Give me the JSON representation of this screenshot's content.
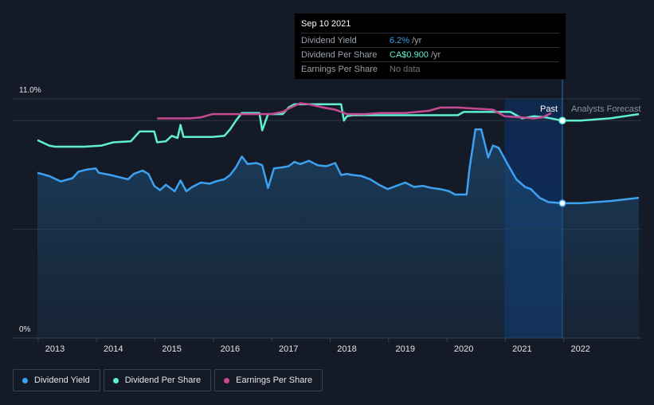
{
  "tooltip": {
    "date": "Sep 10 2021",
    "rows": [
      {
        "name": "Dividend Yield",
        "value": "6.2%",
        "unit": "/yr",
        "color": "#3ba1f0"
      },
      {
        "name": "Dividend Per Share",
        "value": "CA$0.900",
        "unit": "/yr",
        "color": "#5ef0d0"
      },
      {
        "name": "Earnings Per Share",
        "value": "No data",
        "unit": "",
        "color": "#6e7680"
      }
    ]
  },
  "legend": [
    {
      "label": "Dividend Yield",
      "color": "#3ba1f0"
    },
    {
      "label": "Dividend Per Share",
      "color": "#5ef0d0"
    },
    {
      "label": "Earnings Per Share",
      "color": "#c74b93"
    }
  ],
  "chart_data": {
    "type": "line",
    "y_top_label": "11.0%",
    "y_bottom_label": "0%",
    "ylim": [
      0,
      11
    ],
    "xlim": [
      2012.7,
      2023.0
    ],
    "x_ticks": [
      {
        "value": 2013,
        "label": "2013"
      },
      {
        "value": 2014,
        "label": "2014"
      },
      {
        "value": 2015,
        "label": "2015"
      },
      {
        "value": 2016,
        "label": "2016"
      },
      {
        "value": 2017,
        "label": "2017"
      },
      {
        "value": 2018,
        "label": "2018"
      },
      {
        "value": 2019,
        "label": "2019"
      },
      {
        "value": 2020,
        "label": "2020"
      },
      {
        "value": 2021,
        "label": "2021"
      },
      {
        "value": 2022,
        "label": "2022"
      }
    ],
    "past_label": "Past",
    "forecast_label": "Analysts Forecast",
    "forecast_start": 2021.69,
    "highlight_start": 2020.7,
    "series": [
      {
        "name": "Dividend Yield",
        "color": "#3ba1f0",
        "area": true,
        "points": [
          [
            2012.7,
            7.6
          ],
          [
            2012.9,
            7.45
          ],
          [
            2013.1,
            7.2
          ],
          [
            2013.3,
            7.35
          ],
          [
            2013.4,
            7.65
          ],
          [
            2013.55,
            7.75
          ],
          [
            2013.7,
            7.8
          ],
          [
            2013.75,
            7.6
          ],
          [
            2013.95,
            7.5
          ],
          [
            2014.1,
            7.4
          ],
          [
            2014.25,
            7.3
          ],
          [
            2014.35,
            7.55
          ],
          [
            2014.5,
            7.7
          ],
          [
            2014.6,
            7.55
          ],
          [
            2014.7,
            7.0
          ],
          [
            2014.8,
            6.8
          ],
          [
            2014.9,
            7.05
          ],
          [
            2015.05,
            6.75
          ],
          [
            2015.15,
            7.25
          ],
          [
            2015.25,
            6.75
          ],
          [
            2015.35,
            6.95
          ],
          [
            2015.5,
            7.15
          ],
          [
            2015.65,
            7.1
          ],
          [
            2015.75,
            7.2
          ],
          [
            2015.9,
            7.3
          ],
          [
            2016.0,
            7.5
          ],
          [
            2016.1,
            7.85
          ],
          [
            2016.2,
            8.35
          ],
          [
            2016.3,
            8.0
          ],
          [
            2016.45,
            8.05
          ],
          [
            2016.55,
            7.95
          ],
          [
            2016.65,
            6.9
          ],
          [
            2016.75,
            7.8
          ],
          [
            2016.9,
            7.85
          ],
          [
            2017.0,
            7.9
          ],
          [
            2017.1,
            8.1
          ],
          [
            2017.2,
            8.0
          ],
          [
            2017.35,
            8.15
          ],
          [
            2017.5,
            7.95
          ],
          [
            2017.65,
            7.9
          ],
          [
            2017.8,
            8.05
          ],
          [
            2017.9,
            7.5
          ],
          [
            2018.0,
            7.55
          ],
          [
            2018.1,
            7.5
          ],
          [
            2018.25,
            7.45
          ],
          [
            2018.4,
            7.3
          ],
          [
            2018.55,
            7.05
          ],
          [
            2018.7,
            6.85
          ],
          [
            2018.85,
            7.0
          ],
          [
            2019.0,
            7.15
          ],
          [
            2019.15,
            6.95
          ],
          [
            2019.3,
            7.0
          ],
          [
            2019.45,
            6.9
          ],
          [
            2019.6,
            6.85
          ],
          [
            2019.75,
            6.75
          ],
          [
            2019.85,
            6.6
          ],
          [
            2020.05,
            6.6
          ],
          [
            2020.1,
            7.8
          ],
          [
            2020.2,
            9.6
          ],
          [
            2020.3,
            9.6
          ],
          [
            2020.42,
            8.3
          ],
          [
            2020.5,
            8.85
          ],
          [
            2020.6,
            8.75
          ],
          [
            2020.75,
            8.0
          ],
          [
            2020.9,
            7.3
          ],
          [
            2021.05,
            6.95
          ],
          [
            2021.15,
            6.85
          ],
          [
            2021.3,
            6.45
          ],
          [
            2021.45,
            6.25
          ],
          [
            2021.69,
            6.2
          ],
          [
            2022.0,
            6.2
          ],
          [
            2022.5,
            6.3
          ],
          [
            2023.0,
            6.45
          ]
        ]
      },
      {
        "name": "Dividend Per Share",
        "color": "#5ef0d0",
        "area": false,
        "points": [
          [
            2012.7,
            9.1
          ],
          [
            2012.9,
            8.85
          ],
          [
            2013.0,
            8.8
          ],
          [
            2013.5,
            8.8
          ],
          [
            2013.8,
            8.85
          ],
          [
            2014.0,
            9.0
          ],
          [
            2014.3,
            9.05
          ],
          [
            2014.45,
            9.5
          ],
          [
            2014.7,
            9.5
          ],
          [
            2014.75,
            9.0
          ],
          [
            2014.9,
            9.05
          ],
          [
            2015.0,
            9.3
          ],
          [
            2015.1,
            9.2
          ],
          [
            2015.15,
            9.8
          ],
          [
            2015.2,
            9.25
          ],
          [
            2015.7,
            9.25
          ],
          [
            2015.9,
            9.3
          ],
          [
            2016.0,
            9.6
          ],
          [
            2016.1,
            10.0
          ],
          [
            2016.2,
            10.35
          ],
          [
            2016.5,
            10.35
          ],
          [
            2016.55,
            9.55
          ],
          [
            2016.65,
            10.3
          ],
          [
            2016.9,
            10.3
          ],
          [
            2017.0,
            10.6
          ],
          [
            2017.1,
            10.75
          ],
          [
            2017.25,
            10.75
          ],
          [
            2017.9,
            10.75
          ],
          [
            2017.95,
            10.0
          ],
          [
            2018.0,
            10.2
          ],
          [
            2018.1,
            10.25
          ],
          [
            2019.0,
            10.25
          ],
          [
            2019.9,
            10.25
          ],
          [
            2020.0,
            10.4
          ],
          [
            2020.1,
            10.4
          ],
          [
            2020.8,
            10.4
          ],
          [
            2021.0,
            10.1
          ],
          [
            2021.2,
            10.2
          ],
          [
            2021.4,
            10.15
          ],
          [
            2021.69,
            10.0
          ],
          [
            2022.0,
            10.0
          ],
          [
            2022.5,
            10.1
          ],
          [
            2023.0,
            10.3
          ]
        ]
      },
      {
        "name": "Earnings Per Share",
        "color": "#c74b93",
        "area": false,
        "points": [
          [
            2014.75,
            10.1
          ],
          [
            2015.0,
            10.1
          ],
          [
            2015.3,
            10.1
          ],
          [
            2015.5,
            10.15
          ],
          [
            2015.7,
            10.3
          ],
          [
            2015.9,
            10.3
          ],
          [
            2016.1,
            10.3
          ],
          [
            2016.5,
            10.3
          ],
          [
            2016.7,
            10.3
          ],
          [
            2016.9,
            10.4
          ],
          [
            2017.0,
            10.55
          ],
          [
            2017.2,
            10.8
          ],
          [
            2017.35,
            10.75
          ],
          [
            2017.6,
            10.6
          ],
          [
            2017.8,
            10.5
          ],
          [
            2018.0,
            10.3
          ],
          [
            2018.3,
            10.3
          ],
          [
            2018.6,
            10.35
          ],
          [
            2019.0,
            10.35
          ],
          [
            2019.4,
            10.45
          ],
          [
            2019.6,
            10.6
          ],
          [
            2019.9,
            10.6
          ],
          [
            2020.2,
            10.55
          ],
          [
            2020.5,
            10.5
          ],
          [
            2020.7,
            10.2
          ],
          [
            2021.0,
            10.15
          ],
          [
            2021.2,
            10.1
          ],
          [
            2021.35,
            10.15
          ],
          [
            2021.5,
            10.35
          ]
        ]
      }
    ]
  }
}
